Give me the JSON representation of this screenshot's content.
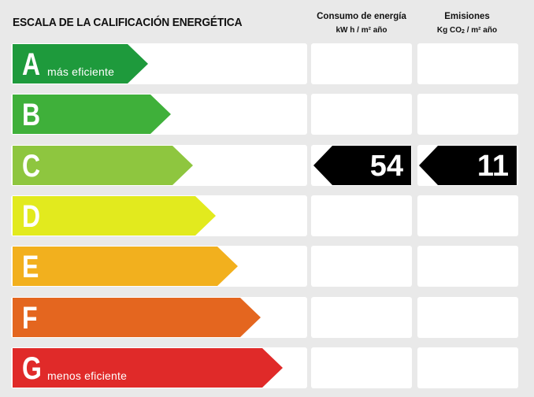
{
  "title": "ESCALA DE LA CALIFICACIÓN ENERGÉTICA",
  "columns": {
    "energy": {
      "label": "Consumo de energía",
      "unit": "kW h / m² año"
    },
    "emissions": {
      "label": "Emisiones",
      "unit_pre": "Kg CO",
      "unit_sub": "2",
      "unit_post": " / m² año"
    }
  },
  "ratings": [
    {
      "letter": "A",
      "caption": "más eficiente",
      "color": "#1e9a3c"
    },
    {
      "letter": "B",
      "caption": "",
      "color": "#3fb03a"
    },
    {
      "letter": "C",
      "caption": "",
      "color": "#8ec63f"
    },
    {
      "letter": "D",
      "caption": "",
      "color": "#e2ea1e"
    },
    {
      "letter": "E",
      "caption": "",
      "color": "#f2b01e"
    },
    {
      "letter": "F",
      "caption": "",
      "color": "#e4661f"
    },
    {
      "letter": "G",
      "caption": "menos eficiente",
      "color": "#e02a29"
    }
  ],
  "current_rating": "C",
  "energy_value": "54",
  "emissions_value": "11",
  "marker_color": "#000000"
}
